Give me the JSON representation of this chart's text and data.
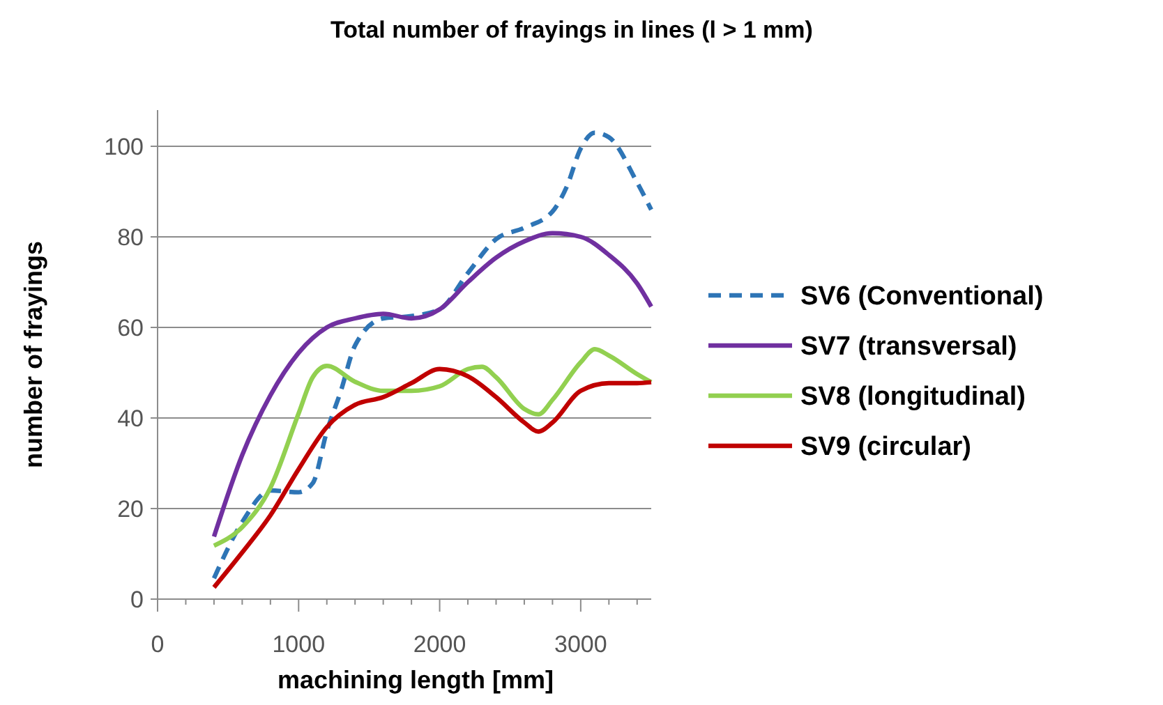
{
  "chart_data": {
    "type": "line",
    "title": "Total number of frayings in lines (l > 1 mm)",
    "xlabel": "machining length [mm]",
    "ylabel": "number of frayings",
    "xlim": [
      0,
      3500
    ],
    "ylim": [
      0,
      108
    ],
    "xticks": [
      0,
      {
        "value": 200,
        "label": null
      },
      {
        "value": 400,
        "label": null
      },
      {
        "value": 600,
        "label": null
      },
      {
        "value": 800,
        "label": null
      },
      1000,
      {
        "value": 1200,
        "label": null
      },
      {
        "value": 1400,
        "label": null
      },
      {
        "value": 1600,
        "label": null
      },
      {
        "value": 1800,
        "label": null
      },
      2000,
      {
        "value": 2200,
        "label": null
      },
      {
        "value": 2400,
        "label": null
      },
      {
        "value": 2600,
        "label": null
      },
      {
        "value": 2800,
        "label": null
      },
      3000,
      {
        "value": 3200,
        "label": null
      },
      {
        "value": 3400,
        "label": null
      }
    ],
    "yticks": [
      0,
      20,
      40,
      60,
      80,
      100
    ],
    "grid": "y",
    "legend": "right",
    "marker": "none",
    "series": [
      {
        "name": "SV6 (Conventional)",
        "color": "#2e75b6",
        "line_style": "dashed",
        "x": [
          400,
          600,
          800,
          1000,
          1100,
          1200,
          1300,
          1400,
          1600,
          1800,
          2000,
          2200,
          2400,
          2600,
          2800,
          2900,
          3000,
          3100,
          3200,
          3400,
          3500
        ],
        "values": [
          4.6,
          17,
          24,
          23.6,
          25.6,
          37,
          46,
          56,
          62,
          62.5,
          64,
          72,
          79.5,
          82,
          85.6,
          91,
          99.5,
          103,
          102,
          92,
          86
        ]
      },
      {
        "name": "SV7 (transversal)",
        "color": "#7030a0",
        "line_style": "solid",
        "x": [
          400,
          600,
          800,
          1000,
          1200,
          1400,
          1600,
          1800,
          2000,
          2200,
          2400,
          2600,
          2800,
          3000,
          3200,
          3400,
          3500
        ],
        "values": [
          13.8,
          31.8,
          45,
          54.4,
          60,
          62,
          63,
          62,
          64,
          70,
          75.4,
          79,
          80.8,
          80,
          76,
          69.7,
          64.6
        ]
      },
      {
        "name": "SV8 (longitudinal)",
        "color": "#92d050",
        "line_style": "solid",
        "x": [
          400,
          600,
          800,
          1000,
          1100,
          1200,
          1400,
          1600,
          1800,
          2000,
          2200,
          2300,
          2400,
          2600,
          2700,
          2800,
          3000,
          3100,
          3200,
          3400,
          3500
        ],
        "values": [
          11.8,
          15.9,
          24.6,
          41,
          49,
          51.5,
          48,
          46,
          46,
          47,
          50.8,
          51.3,
          49,
          42,
          40.8,
          44,
          52.3,
          55.2,
          53.8,
          49.7,
          47.9
        ]
      },
      {
        "name": "SV9 (circular)",
        "color": "#c00000",
        "line_style": "solid",
        "x": [
          400,
          600,
          800,
          1000,
          1200,
          1400,
          1600,
          1800,
          2000,
          2200,
          2400,
          2600,
          2700,
          2800,
          3000,
          3200,
          3400,
          3500
        ],
        "values": [
          2.6,
          10.3,
          18.5,
          28.7,
          38,
          42.9,
          44.6,
          47.7,
          50.8,
          49.2,
          44.6,
          39,
          37,
          39,
          46,
          47.7,
          47.7,
          47.9
        ]
      }
    ]
  }
}
